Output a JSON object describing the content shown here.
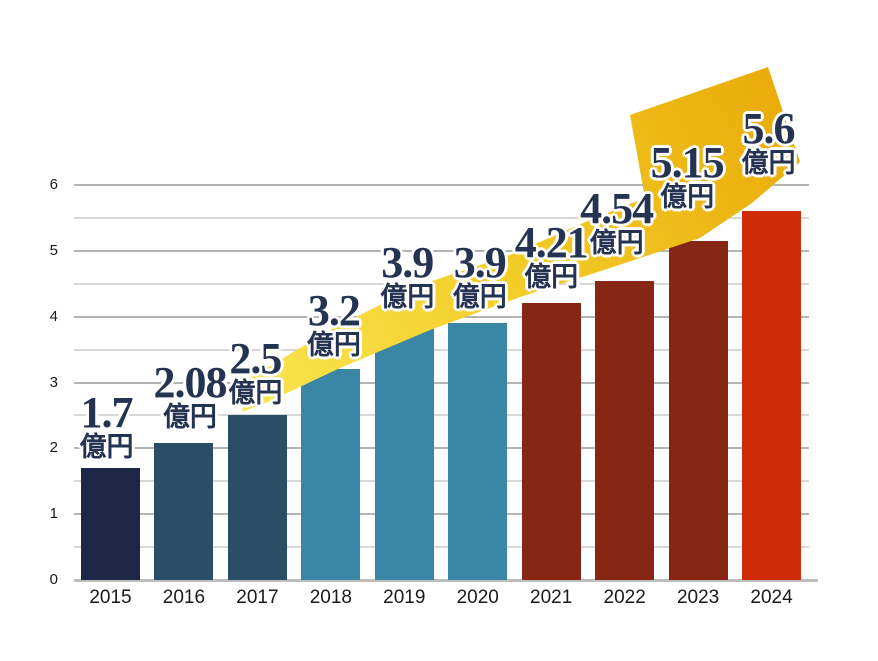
{
  "chart_data": {
    "type": "bar",
    "title": "",
    "xlabel": "",
    "ylabel": "",
    "categories": [
      "2015",
      "2016",
      "2017",
      "2018",
      "2019",
      "2020",
      "2021",
      "2022",
      "2023",
      "2024"
    ],
    "values": [
      1.7,
      2.08,
      2.5,
      3.2,
      3.9,
      3.9,
      4.21,
      4.54,
      5.15,
      5.6
    ],
    "value_labels": [
      "1.7",
      "2.08",
      "2.5",
      "3.2",
      "3.9",
      "3.9",
      "4.21",
      "4.54",
      "5.15",
      "5.6"
    ],
    "unit_label": "億円",
    "bar_colors": [
      "#1d2645",
      "#2a4e66",
      "#2a4e66",
      "#3a87a5",
      "#3a87a5",
      "#3a87a5",
      "#862715",
      "#862715",
      "#862715",
      "#d02b07"
    ],
    "ylim": [
      0,
      6
    ],
    "yticks": [
      "0",
      "1",
      "2",
      "3",
      "4",
      "5",
      "6"
    ],
    "grid_step": 0.5,
    "grid": true,
    "legend": false,
    "annotation": {
      "type": "growth-arrow-up-right",
      "gradient_colors": [
        "#f9e552",
        "#f3cd28",
        "#e9a907"
      ]
    },
    "colors": {
      "value_text": "#253352",
      "axis_text": "#1a1a1a",
      "grid_major": "#b4b4b4",
      "grid_minor": "#d8d8d8",
      "baseline": "#bdbdbd",
      "background": "#ffffff"
    }
  }
}
